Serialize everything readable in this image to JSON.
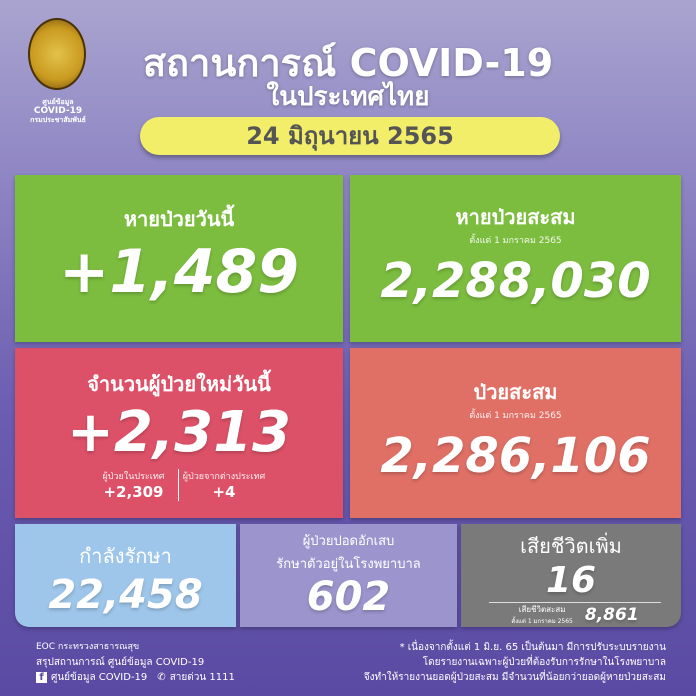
{
  "header": {
    "seal_text": [
      "ศูนย์ข้อมูล",
      "COVID-19",
      "กรมประชาสัมพันธ์"
    ],
    "title": "สถานการณ์ COVID-19",
    "subtitle": "ในประเทศไทย",
    "date": "24 มิถุนายน 2565"
  },
  "cards": {
    "recovered_today": {
      "label": "หายป่วยวันนี้",
      "value": "+1,489",
      "color": "#7cbd3f"
    },
    "recovered_total": {
      "label": "หายป่วยสะสม",
      "since": "ตั้งแต่ 1 มกราคม 2565",
      "value": "2,288,030",
      "color": "#7cbd3f"
    },
    "new_cases": {
      "label": "จำนวนผู้ป่วยใหม่วันนี้",
      "value": "+2,313",
      "domestic_label": "ผู้ป่วยในประเทศ",
      "domestic_value": "+2,309",
      "imported_label": "ผู้ป่วยจากต่างประเทศ",
      "imported_value": "+4",
      "color": "#dd5168"
    },
    "total_cases": {
      "label": "ป่วยสะสม",
      "since": "ตั้งแต่ 1 มกราคม 2565",
      "value": "2,286,106",
      "color": "#e07066"
    },
    "in_treatment": {
      "label": "กำลังรักษา",
      "value": "22,458",
      "color": "#9ec6ea"
    },
    "pneumonia": {
      "label1": "ผู้ป่วยปอดอักเสบ",
      "label2": "รักษาตัวอยู่ในโรงพยาบาล",
      "value": "602",
      "color": "#9c95cd"
    },
    "deaths": {
      "label": "เสียชีวิตเพิ่ม",
      "value": "16",
      "total_label": "เสียชีวิตสะสม",
      "since": "ตั้งแต่ 1 มกราคม 2565",
      "total_value": "8,861",
      "color": "#7a7a7a"
    }
  },
  "footer": {
    "line1": "EOC กระทรวงสาธารณสุข",
    "line2": "สรุปสถานการณ์ ศูนย์ข้อมูล COVID-19",
    "facebook": "ศูนย์ข้อมูล COVID-19",
    "hotline": "สายด่วน 1111",
    "note": [
      "* เนื่องจากตั้งแต่ 1 มิ.ย. 65 เป็นต้นมา มีการปรับระบบรายงาน",
      "โดยรายงานเฉพาะผู้ป่วยที่ต้องรับการรักษาในโรงพยาบาล",
      "จึงทำให้รายงานยอดผู้ป่วยสะสม มีจำนวนที่น้อยกว่ายอดผู้หายป่วยสะสม"
    ]
  }
}
